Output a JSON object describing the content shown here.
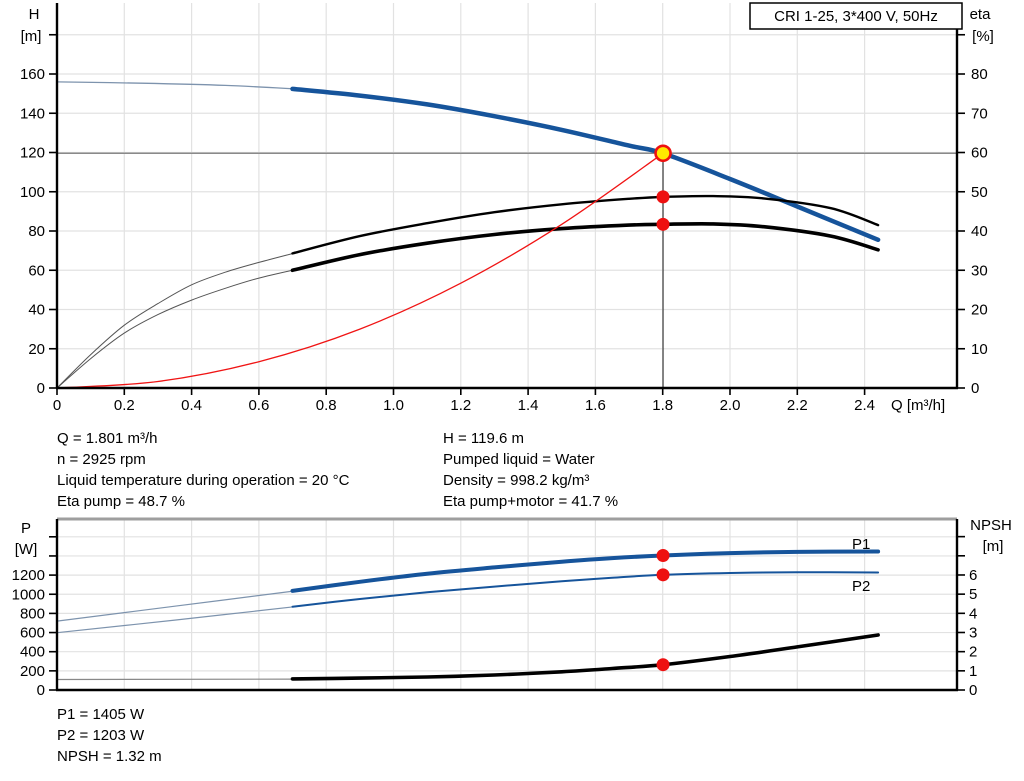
{
  "window": {
    "title_box": "CRI 1-25, 3*400 V, 50Hz"
  },
  "colors": {
    "curve_blue": "#16549b",
    "thin_blue": "#7d93ad",
    "curve_black": "#000000",
    "thin_black": "#555555",
    "system_red": "#f01414",
    "duty_dot_red": "#ee1111",
    "duty_fill_yellow": "#ffe800",
    "gridline": "#e2e2e2",
    "duty_line_gray": "#8a8a8a",
    "separator_gray": "#9e9e9e",
    "axis_black": "#000000"
  },
  "top_chart": {
    "left_axis": {
      "title": "H",
      "unit": "[m]",
      "ticks": [
        "0",
        "20",
        "40",
        "60",
        "80",
        "100",
        "120",
        "140",
        "160"
      ]
    },
    "right_axis": {
      "title": "eta",
      "unit": "[%]",
      "ticks": [
        "0",
        "10",
        "20",
        "30",
        "40",
        "50",
        "60",
        "70",
        "80"
      ]
    },
    "x_axis": {
      "title": "Q [m³/h]",
      "ticks": [
        "0",
        "0.2",
        "0.4",
        "0.6",
        "0.8",
        "1.0",
        "1.2",
        "1.4",
        "1.6",
        "1.8",
        "2.0",
        "2.2",
        "2.4"
      ]
    }
  },
  "bottom_chart": {
    "left_axis": {
      "title": "P",
      "unit": "[W]",
      "ticks": [
        "0",
        "200",
        "400",
        "600",
        "800",
        "1000",
        "1200"
      ]
    },
    "right_axis": {
      "title": "NPSH",
      "unit": "[m]",
      "ticks": [
        "0",
        "1",
        "2",
        "3",
        "4",
        "5",
        "6"
      ]
    },
    "curve_labels": {
      "p1": "P1",
      "p2": "P2"
    }
  },
  "info": {
    "top_left": [
      "Q = 1.801 m³/h",
      "n = 2925 rpm",
      "Liquid temperature during operation = 20 °C",
      "Eta pump = 48.7 %"
    ],
    "top_right": [
      "H = 119.6 m",
      "Pumped liquid = Water",
      "Density = 998.2 kg/m³",
      "Eta pump+motor = 41.7 %"
    ],
    "bottom": [
      "P1 = 1405 W",
      "P2 = 1203 W",
      "NPSH = 1.32 m"
    ]
  },
  "chart_data": [
    {
      "type": "line",
      "id": "head-efficiency-chart",
      "title": "CRI 1-25, 3*400 V, 50Hz",
      "xlabel": "Q [m³/h]",
      "ylabel_left": "H [m]",
      "ylabel_right": "eta [%]",
      "x_range": [
        0,
        2.675
      ],
      "y_left_range": [
        0,
        195.7
      ],
      "y_right_range": [
        0,
        97.8
      ],
      "grid": true,
      "series": [
        {
          "name": "pump-head-thin",
          "axis": "H",
          "q": [
            0,
            0.25,
            0.5,
            0.72
          ],
          "v": [
            156,
            155.3,
            154.2,
            152.3
          ]
        },
        {
          "name": "pump-head",
          "axis": "H",
          "q": [
            0.7,
            0.9,
            1.1,
            1.3,
            1.5,
            1.7,
            1.801,
            2.0,
            2.2,
            2.44
          ],
          "v": [
            152.4,
            149,
            144.5,
            138.5,
            131.5,
            123.5,
            119.6,
            106.5,
            92.5,
            75.5
          ]
        },
        {
          "name": "eta-pump-thin",
          "axis": "eta",
          "q": [
            0,
            0.1,
            0.2,
            0.3,
            0.4,
            0.5,
            0.6,
            0.72
          ],
          "v": [
            0,
            8.5,
            16,
            21.5,
            26.3,
            29.5,
            32,
            34.7
          ]
        },
        {
          "name": "eta-pump",
          "axis": "eta",
          "q": [
            0.7,
            0.9,
            1.1,
            1.3,
            1.5,
            1.7,
            1.801,
            1.95,
            2.1,
            2.3,
            2.44
          ],
          "v": [
            34.3,
            38.7,
            42,
            44.8,
            46.8,
            48.2,
            48.7,
            48.9,
            48.3,
            45.8,
            41.5
          ]
        },
        {
          "name": "eta-pump-motor-thin",
          "axis": "eta",
          "q": [
            0,
            0.1,
            0.2,
            0.3,
            0.4,
            0.5,
            0.6,
            0.72
          ],
          "v": [
            0,
            7.5,
            14,
            18.7,
            22.4,
            25.4,
            28,
            30.4
          ]
        },
        {
          "name": "eta-pump-motor",
          "axis": "eta",
          "q": [
            0.7,
            0.9,
            1.1,
            1.3,
            1.5,
            1.7,
            1.801,
            1.95,
            2.1,
            2.3,
            2.44
          ],
          "v": [
            30,
            34,
            36.9,
            39.1,
            40.6,
            41.5,
            41.7,
            41.8,
            41.1,
            38.7,
            35.2
          ]
        },
        {
          "name": "system-curve",
          "axis": "H",
          "q": [
            0,
            0.3,
            0.6,
            0.9,
            1.2,
            1.5,
            1.801
          ],
          "v": [
            0,
            3.3,
            13.4,
            30,
            53.4,
            83.4,
            119.6
          ]
        }
      ],
      "duty_point": {
        "q": 1.801,
        "h": 119.6,
        "eta_pump": 48.7,
        "eta_pump_motor": 41.7
      }
    },
    {
      "type": "line",
      "id": "power-npsh-chart",
      "title": "",
      "xlabel": "Q [m³/h]",
      "ylabel_left": "P [W]",
      "ylabel_right": "NPSH [m]",
      "x_range": [
        0,
        2.675
      ],
      "y_left_range": [
        0,
        1790
      ],
      "y_right_range": [
        0,
        8.95
      ],
      "grid": true,
      "series": [
        {
          "name": "p1-thin",
          "axis": "P",
          "q": [
            0,
            0.35,
            0.72
          ],
          "v": [
            720,
            875,
            1040
          ]
        },
        {
          "name": "p1",
          "axis": "P",
          "q": [
            0.7,
            0.9,
            1.1,
            1.3,
            1.5,
            1.65,
            1.801,
            2.0,
            2.2,
            2.44
          ],
          "v": [
            1035,
            1130,
            1215,
            1280,
            1340,
            1378,
            1405,
            1430,
            1442,
            1446
          ]
        },
        {
          "name": "p2-thin",
          "axis": "P",
          "q": [
            0,
            0.35,
            0.72
          ],
          "v": [
            598,
            730,
            875
          ]
        },
        {
          "name": "p2",
          "axis": "P",
          "q": [
            0.7,
            0.9,
            1.1,
            1.3,
            1.5,
            1.65,
            1.801,
            2.0,
            2.2,
            2.44
          ],
          "v": [
            870,
            950,
            1020,
            1080,
            1135,
            1172,
            1203,
            1222,
            1230,
            1227
          ]
        },
        {
          "name": "npsh-thin",
          "axis": "NPSH",
          "q": [
            0,
            0.72
          ],
          "v": [
            0.55,
            0.57
          ]
        },
        {
          "name": "npsh",
          "axis": "NPSH",
          "q": [
            0.7,
            0.9,
            1.1,
            1.3,
            1.5,
            1.65,
            1.801,
            2.0,
            2.2,
            2.44
          ],
          "v": [
            0.58,
            0.62,
            0.68,
            0.78,
            0.95,
            1.12,
            1.32,
            1.75,
            2.25,
            2.87
          ]
        }
      ],
      "duty_point": {
        "q": 1.801,
        "p1": 1405,
        "p2": 1203,
        "npsh": 1.32
      }
    }
  ]
}
